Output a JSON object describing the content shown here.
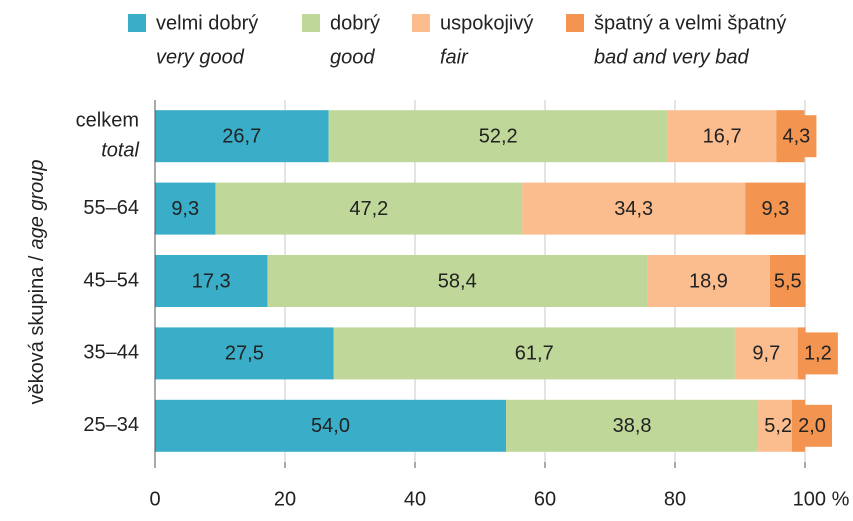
{
  "chart_data": {
    "type": "stacked-bar-horizontal",
    "ylabel": "věková skupina /",
    "ylabel_en": "age group",
    "categories": [
      "celkem",
      "55–64",
      "45–54",
      "35–44",
      "25–34"
    ],
    "categories_en": [
      "total",
      null,
      null,
      null,
      null
    ],
    "series": [
      {
        "name": "velmi dobrý",
        "name_en": "very good",
        "color": "#3aaec8",
        "values": [
          26.7,
          9.3,
          17.3,
          27.5,
          54.0
        ],
        "value_labels": [
          "26,7",
          "9,3",
          "17,3",
          "27,5",
          "54,0"
        ]
      },
      {
        "name": "dobrý",
        "name_en": "good",
        "color": "#bfd89a",
        "values": [
          52.2,
          47.2,
          58.4,
          61.7,
          38.8
        ],
        "value_labels": [
          "52,2",
          "47,2",
          "58,4",
          "61,7",
          "38,8"
        ]
      },
      {
        "name": "uspokojivý",
        "name_en": "fair",
        "color": "#fbbd8e",
        "values": [
          16.7,
          34.3,
          18.9,
          9.7,
          5.2
        ],
        "value_labels": [
          "16,7",
          "34,3",
          "18,9",
          "9,7",
          "5,2"
        ]
      },
      {
        "name": "špatný a velmi špatný",
        "name_en": "bad and very bad",
        "color": "#f39550",
        "values": [
          4.3,
          9.3,
          5.5,
          1.2,
          2.0
        ],
        "value_labels": [
          "4,3",
          "9,3",
          "5,5",
          "1,2",
          "2,0"
        ]
      }
    ],
    "xlim": [
      0,
      100
    ],
    "xticks": [
      0,
      20,
      40,
      60,
      80,
      {
        "value": 100,
        "label": "100 %"
      }
    ],
    "grid": true
  }
}
